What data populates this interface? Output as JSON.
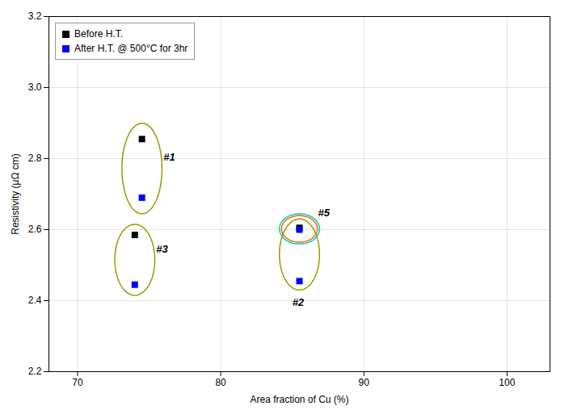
{
  "chart_data": {
    "type": "scatter",
    "title": "",
    "xlabel": "Area fraction of Cu (%)",
    "ylabel": "Resistivity (μΩ cm)",
    "xlim": [
      68,
      103
    ],
    "ylim": [
      2.2,
      3.2
    ],
    "xticks": [
      70,
      80,
      90,
      100
    ],
    "yticks": [
      2.2,
      2.4,
      2.6,
      2.8,
      {
        "value": 3.0,
        "label": "3.0"
      },
      3.2
    ],
    "grid": true,
    "legend": "upper left",
    "series": [
      {
        "name": "Before H.T.",
        "color": "#000000",
        "marker": "square",
        "x": [
          74.5,
          74.0,
          85.5
        ],
        "values": [
          2.855,
          2.585,
          2.605
        ]
      },
      {
        "name": "After H.T. @ 500°C for 3hr",
        "color": "#0000FF",
        "marker": "square",
        "x": [
          74.5,
          74.0,
          85.5,
          85.5
        ],
        "values": [
          2.69,
          2.445,
          2.6,
          2.455
        ]
      }
    ],
    "ellipses": [
      {
        "cx": 74.5,
        "cy": 2.772,
        "width": 2.8,
        "height": 0.255,
        "color": "#999900"
      },
      {
        "cx": 74.0,
        "cy": 2.515,
        "width": 2.8,
        "height": 0.2,
        "color": "#999900"
      },
      {
        "cx": 85.5,
        "cy": 2.53,
        "width": 2.8,
        "height": 0.2,
        "color": "#999900"
      },
      {
        "cx": 85.5,
        "cy": 2.602,
        "width": 2.5,
        "height": 0.075,
        "color": "#FF6600"
      },
      {
        "cx": 85.5,
        "cy": 2.602,
        "width": 2.8,
        "height": 0.085,
        "color": "#00CCCC"
      }
    ],
    "annotations": [
      {
        "text": "#1",
        "x": 76.0,
        "y": 2.795
      },
      {
        "text": "#3",
        "x": 75.5,
        "y": 2.535
      },
      {
        "text": "#5",
        "x": 86.8,
        "y": 2.638
      },
      {
        "text": "#2",
        "x": 85.0,
        "y": 2.385
      }
    ]
  }
}
